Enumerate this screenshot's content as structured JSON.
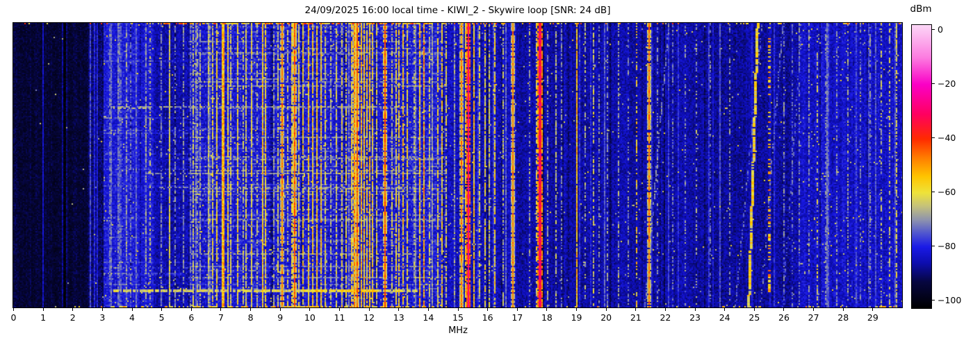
{
  "header": {
    "title": "24/09/2025 16:00 local time - KIWI_2 - Skywire loop [SNR: 24 dB]"
  },
  "chart_data": {
    "type": "heatmap",
    "subtype": "radio-spectrogram-waterfall",
    "title": "24/09/2025 16:00 local time - KIWI_2 - Skywire loop [SNR: 24 dB]",
    "xlabel": "MHz",
    "x_range": [
      0,
      30
    ],
    "x_ticks": [
      0,
      1,
      2,
      3,
      4,
      5,
      6,
      7,
      8,
      9,
      10,
      11,
      12,
      13,
      14,
      15,
      16,
      17,
      18,
      19,
      20,
      21,
      22,
      23,
      24,
      25,
      26,
      27,
      28,
      29
    ],
    "grid": false,
    "legend_position": "none",
    "colorbar": {
      "label": "dBm",
      "range": [
        2,
        -102.6
      ],
      "ticks": [
        {
          "v": 0,
          "label": "0"
        },
        {
          "v": -20,
          "label": "−20"
        },
        {
          "v": -40,
          "label": "−40"
        },
        {
          "v": -60,
          "label": "−60"
        },
        {
          "v": -80,
          "label": "−80"
        },
        {
          "v": -100,
          "label": "−100"
        }
      ],
      "stops": [
        [
          -102.6,
          "#000000"
        ],
        [
          -93,
          "#06063f"
        ],
        [
          -86,
          "#0d0dae"
        ],
        [
          -80,
          "#1a1ae6"
        ],
        [
          -75,
          "#4f55cf"
        ],
        [
          -70,
          "#8e93ad"
        ],
        [
          -65,
          "#c3c07c"
        ],
        [
          -60,
          "#eee33a"
        ],
        [
          -54,
          "#ffc400"
        ],
        [
          -47,
          "#ff7c00"
        ],
        [
          -40,
          "#ff2a00"
        ],
        [
          -31,
          "#ff0060"
        ],
        [
          -20,
          "#fa00c6"
        ],
        [
          -10,
          "#fc7ce0"
        ],
        [
          2,
          "#fcd7f7"
        ]
      ]
    },
    "noise_bands_format": "f_start_MHz, f_end_MHz, base_dBm, spread_dB, speckle_prob",
    "noise_bands": [
      [
        -0.2,
        2.55,
        -98,
        7,
        0.001
      ],
      [
        2.55,
        3.05,
        -94,
        8,
        0.003
      ],
      [
        3.05,
        4.75,
        -86,
        9,
        0.012
      ],
      [
        4.75,
        5.9,
        -90,
        8,
        0.007
      ],
      [
        5.9,
        14.6,
        -87,
        10,
        0.016
      ],
      [
        14.6,
        17.0,
        -89,
        9,
        0.008
      ],
      [
        17.0,
        23.0,
        -90,
        8,
        0.006
      ],
      [
        23.0,
        26.5,
        -91,
        8,
        0.005
      ],
      [
        26.5,
        30.2,
        -88,
        9,
        0.012
      ]
    ],
    "signals_format": "f_MHz, width_px, level_dBm, level_var_dB, duty",
    "signals": [
      [
        2.6,
        1,
        -76,
        4,
        1
      ],
      [
        3.25,
        1,
        -73,
        5,
        0.8
      ],
      [
        3.53,
        1,
        -72,
        5,
        0.85
      ],
      [
        3.62,
        1,
        -74,
        4,
        0.7
      ],
      [
        3.78,
        1,
        -70,
        6,
        0.8
      ],
      [
        3.93,
        1,
        -74,
        5,
        0.7
      ],
      [
        4.12,
        1,
        -73,
        5,
        0.6
      ],
      [
        4.44,
        1,
        -70,
        6,
        0.8
      ],
      [
        4.6,
        1,
        -66,
        8,
        0.5
      ],
      [
        4.98,
        1,
        -72,
        5,
        0.7
      ],
      [
        5.24,
        2,
        -62,
        6,
        0.92
      ],
      [
        5.43,
        1,
        -71,
        5,
        0.6
      ],
      [
        5.73,
        1,
        -70,
        5,
        0.7
      ],
      [
        5.94,
        1,
        -73,
        5,
        0.6
      ],
      [
        6.05,
        1,
        -64,
        6,
        0.7
      ],
      [
        6.18,
        1,
        -70,
        6,
        0.7
      ],
      [
        6.29,
        1,
        -68,
        7,
        0.8
      ],
      [
        6.56,
        1,
        -66,
        7,
        0.8
      ],
      [
        6.72,
        1,
        -62,
        7,
        0.8
      ],
      [
        6.86,
        1,
        -60,
        8,
        0.9
      ],
      [
        7.02,
        2,
        -55,
        7,
        1
      ],
      [
        7.1,
        2,
        -52,
        8,
        1
      ],
      [
        7.22,
        1,
        -60,
        8,
        0.9
      ],
      [
        7.33,
        1,
        -63,
        7,
        0.8
      ],
      [
        7.56,
        1,
        -60,
        7,
        0.9
      ],
      [
        7.72,
        1,
        -65,
        7,
        0.7
      ],
      [
        7.84,
        1,
        -62,
        7,
        0.8
      ],
      [
        8.02,
        1,
        -60,
        7,
        0.9
      ],
      [
        8.2,
        1,
        -66,
        7,
        0.7
      ],
      [
        8.38,
        2,
        -56,
        7,
        0.95
      ],
      [
        8.47,
        1,
        -58,
        8,
        0.9
      ],
      [
        8.75,
        1,
        -68,
        6,
        0.6
      ],
      [
        8.92,
        1,
        -64,
        7,
        0.7
      ],
      [
        9.05,
        1,
        -48,
        8,
        0.95
      ],
      [
        9.24,
        1,
        -64,
        7,
        0.7
      ],
      [
        9.4,
        1,
        -60,
        7,
        0.8
      ],
      [
        9.47,
        1,
        -44,
        6,
        0.95
      ],
      [
        9.64,
        1,
        -62,
        7,
        0.8
      ],
      [
        9.78,
        1,
        -58,
        8,
        0.85
      ],
      [
        9.95,
        2,
        -56,
        8,
        0.95
      ],
      [
        10.08,
        1,
        -58,
        8,
        0.9
      ],
      [
        10.22,
        2,
        -55,
        8,
        0.95
      ],
      [
        10.35,
        1,
        -57,
        8,
        0.9
      ],
      [
        10.5,
        1,
        -62,
        7,
        0.8
      ],
      [
        10.68,
        1,
        -66,
        6,
        0.7
      ],
      [
        10.88,
        1,
        -63,
        7,
        0.8
      ],
      [
        11.05,
        1,
        -62,
        7,
        0.8
      ],
      [
        11.22,
        1,
        -60,
        7,
        0.8
      ],
      [
        11.4,
        1,
        -58,
        8,
        0.85
      ],
      [
        11.5,
        2,
        -50,
        8,
        1
      ],
      [
        11.6,
        2,
        -44,
        6,
        1
      ],
      [
        11.72,
        2,
        -54,
        8,
        0.95
      ],
      [
        11.82,
        1,
        -56,
        8,
        0.9
      ],
      [
        11.92,
        1,
        -58,
        8,
        0.9
      ],
      [
        12.02,
        1,
        -55,
        8,
        0.9
      ],
      [
        12.12,
        1,
        -58,
        8,
        0.9
      ],
      [
        12.24,
        1,
        -62,
        7,
        0.8
      ],
      [
        12.52,
        1,
        -43,
        5,
        1
      ],
      [
        12.74,
        1,
        -64,
        7,
        0.7
      ],
      [
        12.88,
        1,
        -60,
        7,
        0.8
      ],
      [
        13.0,
        1,
        -58,
        8,
        0.85
      ],
      [
        13.14,
        1,
        -56,
        8,
        0.85
      ],
      [
        13.28,
        1,
        -60,
        7,
        0.8
      ],
      [
        13.52,
        1,
        -66,
        6,
        0.6
      ],
      [
        13.72,
        2,
        -55,
        8,
        0.9
      ],
      [
        13.85,
        2,
        -52,
        9,
        0.9
      ],
      [
        14.05,
        1,
        -64,
        7,
        0.7
      ],
      [
        14.3,
        1,
        -60,
        8,
        0.8
      ],
      [
        14.44,
        1,
        -58,
        8,
        0.8
      ],
      [
        14.6,
        1,
        -62,
        7,
        0.7
      ],
      [
        14.88,
        1,
        -68,
        6,
        0.6
      ],
      [
        15.12,
        1,
        -48,
        7,
        0.95
      ],
      [
        15.25,
        1,
        -58,
        7,
        0.8
      ],
      [
        15.36,
        2,
        -28,
        5,
        1
      ],
      [
        15.52,
        1,
        -55,
        7,
        0.9
      ],
      [
        15.7,
        1,
        -62,
        7,
        0.7
      ],
      [
        15.88,
        1,
        -60,
        7,
        0.8
      ],
      [
        16.05,
        1,
        -64,
        6,
        0.7
      ],
      [
        16.25,
        1,
        -58,
        7,
        0.8
      ],
      [
        16.5,
        1,
        -66,
        6,
        0.6
      ],
      [
        16.84,
        1,
        -48,
        6,
        1
      ],
      [
        17.42,
        1,
        -68,
        6,
        0.5
      ],
      [
        17.64,
        1,
        -60,
        7,
        0.6
      ],
      [
        17.75,
        3,
        -33,
        6,
        1
      ],
      [
        18.02,
        1,
        -68,
        6,
        0.5
      ],
      [
        18.28,
        1,
        -66,
        6,
        0.6
      ],
      [
        18.48,
        1,
        -70,
        5,
        0.5
      ],
      [
        19.02,
        2,
        -54,
        7,
        0.95
      ],
      [
        19.3,
        1,
        -68,
        6,
        0.5
      ],
      [
        19.55,
        1,
        -64,
        7,
        0.6
      ],
      [
        19.75,
        1,
        -70,
        5,
        0.5
      ],
      [
        20.05,
        1,
        -70,
        5,
        0.5
      ],
      [
        20.4,
        1,
        -68,
        6,
        0.5
      ],
      [
        20.75,
        1,
        -70,
        5,
        0.4
      ],
      [
        21.01,
        2,
        -58,
        9,
        0.5
      ],
      [
        21.43,
        2,
        -47,
        6,
        0.95
      ],
      [
        21.7,
        1,
        -70,
        5,
        0.4
      ],
      [
        22.25,
        1,
        -72,
        5,
        0.4
      ],
      [
        22.65,
        1,
        -70,
        5,
        0.4
      ],
      [
        23.05,
        1,
        -68,
        6,
        0.4
      ],
      [
        23.5,
        1,
        -72,
        5,
        0.4
      ],
      [
        24.15,
        1,
        -70,
        5,
        0.4
      ],
      [
        25.45,
        3,
        -53,
        9,
        0.32
      ],
      [
        26.0,
        1,
        -72,
        6,
        0.5
      ],
      [
        26.25,
        1,
        -74,
        5,
        0.5
      ],
      [
        26.5,
        1,
        -72,
        5,
        0.5
      ],
      [
        26.85,
        1,
        -70,
        6,
        0.5
      ],
      [
        27.1,
        1,
        -64,
        8,
        0.5
      ],
      [
        27.4,
        1,
        -72,
        5,
        0.5
      ],
      [
        27.75,
        1,
        -70,
        5,
        0.5
      ],
      [
        28.15,
        1,
        -68,
        6,
        0.5
      ],
      [
        28.55,
        1,
        -72,
        5,
        0.5
      ],
      [
        28.9,
        1,
        -70,
        5,
        0.5
      ],
      [
        29.25,
        1,
        -66,
        7,
        0.5
      ],
      [
        29.55,
        1,
        -64,
        7,
        0.5
      ],
      [
        29.78,
        1,
        -62,
        7,
        0.6
      ]
    ],
    "streaks_format": "f_start, f_end, y_fraction, level_dBm, var_dB, density, height_cells",
    "streaks": [
      [
        6.2,
        13.6,
        0.195,
        -71,
        4,
        0.55,
        1
      ],
      [
        3.2,
        13.6,
        0.295,
        -68,
        5,
        0.6,
        1
      ],
      [
        3.3,
        4.6,
        0.298,
        -66,
        6,
        0.7,
        1
      ],
      [
        6.4,
        13.6,
        0.468,
        -71,
        4,
        0.5,
        1
      ],
      [
        4.3,
        13.6,
        0.525,
        -70,
        4,
        0.5,
        1
      ],
      [
        4.7,
        13.6,
        0.578,
        -70,
        4,
        0.55,
        1
      ],
      [
        8.0,
        12.5,
        0.655,
        -70,
        4,
        0.45,
        1
      ],
      [
        6.0,
        13.6,
        0.81,
        -69,
        5,
        0.55,
        1
      ],
      [
        3.4,
        13.6,
        0.937,
        -63,
        6,
        0.8,
        2
      ],
      [
        9.8,
        12.3,
        0.937,
        -58,
        6,
        0.85,
        2
      ]
    ],
    "diagonals_format": "f_at_bottom, f_at_top, level_dBm, var_dB, width_cells, duty",
    "diagonals": [
      [
        21.3,
        22.1,
        -72,
        5,
        1,
        0.6
      ],
      [
        24.35,
        25.25,
        -74,
        4,
        1,
        0.5
      ],
      [
        24.78,
        25.08,
        -59,
        7,
        2,
        0.92
      ],
      [
        25.2,
        25.95,
        -73,
        4,
        1,
        0.45
      ],
      [
        25.95,
        26.6,
        -75,
        4,
        1,
        0.4
      ]
    ],
    "edge_rows": {
      "top": {
        "ranges": [
          [
            4.4,
            16.6
          ]
        ],
        "sporadic": 0.12
      },
      "bottom": {
        "ranges": [
          [
            3.3,
            14.2
          ],
          [
            24.3,
            25.4
          ],
          [
            29.0,
            29.9
          ]
        ],
        "sporadic": 0.05
      }
    }
  }
}
